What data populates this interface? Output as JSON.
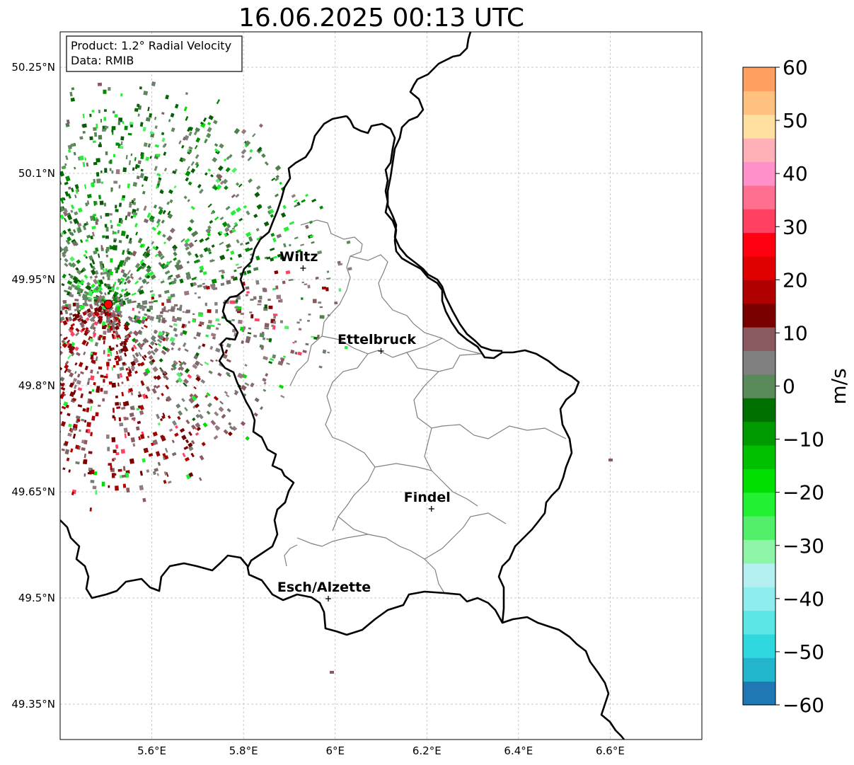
{
  "title": "16.06.2025 00:13 UTC",
  "info_box": {
    "line1": "Product: 1.2° Radial Velocity",
    "line2": "Data: RMIB"
  },
  "axes": {
    "lon_ticks": [
      "5.6°E",
      "5.8°E",
      "6°E",
      "6.2°E",
      "6.4°E",
      "6.6°E"
    ],
    "lat_ticks": [
      "50.25°N",
      "50.1°N",
      "49.95°N",
      "49.8°N",
      "49.65°N",
      "49.5°N",
      "49.35°N"
    ],
    "lon_range": [
      5.4,
      6.8
    ],
    "lat_range": [
      49.3,
      50.3
    ]
  },
  "cities": [
    {
      "name": "Wiltz",
      "lon": 5.93,
      "lat": 49.966
    },
    {
      "name": "Ettelbruck",
      "lon": 6.1,
      "lat": 49.849
    },
    {
      "name": "Findel",
      "lon": 6.21,
      "lat": 49.626
    },
    {
      "name": "Esch/Alzette",
      "lon": 5.985,
      "lat": 49.499
    }
  ],
  "radar_site": {
    "lon": 5.505,
    "lat": 49.915,
    "color": "#ff0000"
  },
  "colorbar": {
    "label": "m/s",
    "ticks": [
      "60",
      "50",
      "40",
      "30",
      "20",
      "10",
      "0",
      "−10",
      "−20",
      "−30",
      "−40",
      "−50",
      "−60"
    ],
    "range": [
      -60,
      60
    ],
    "colors": [
      "#1f78b4",
      "#22b5cc",
      "#2fd8de",
      "#5ce6e6",
      "#8eeeee",
      "#b4f0f2",
      "#8ef5a8",
      "#52f06a",
      "#22f032",
      "#00e000",
      "#00c000",
      "#009a00",
      "#007000",
      "#5a8a5a",
      "#808080",
      "#8a5a60",
      "#7a0000",
      "#b00000",
      "#e00000",
      "#ff0010",
      "#ff4060",
      "#ff7090",
      "#ff90c8",
      "#ffb0b8",
      "#ffe0a0",
      "#ffc080",
      "#ffa060"
    ]
  }
}
